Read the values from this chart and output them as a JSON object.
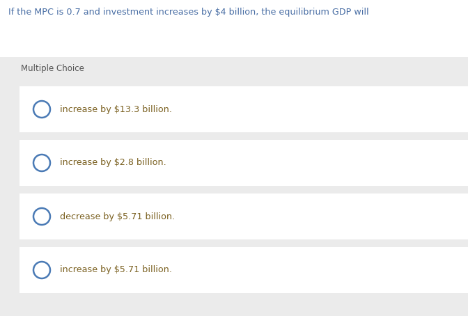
{
  "question": "If the MPC is 0.7 and investment increases by $4 billion, the equilibrium GDP will",
  "question_color": "#4a6fa5",
  "section_label": "Multiple Choice",
  "section_label_color": "#555555",
  "bg_color": "#ebebeb",
  "white_bg": "#ffffff",
  "choices": [
    "increase by $13.3 billion.",
    "increase by $2.8 billion.",
    "decrease by $5.71 billion.",
    "increase by $5.71 billion."
  ],
  "choice_text_color": "#7a6020",
  "circle_edge_color": "#4a7ab5",
  "circle_face_color": "#ffffff",
  "fig_width": 6.72,
  "fig_height": 4.54,
  "dpi": 100
}
